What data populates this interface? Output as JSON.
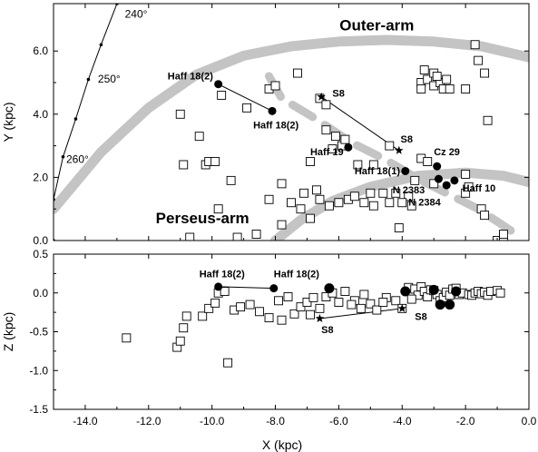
{
  "chart_data": [
    {
      "type": "scatter",
      "panel": "top",
      "xlabel": "",
      "ylabel": "Y (kpc)",
      "xlim": [
        -15.0,
        0.0
      ],
      "ylim": [
        0.0,
        7.5
      ],
      "xticks": [],
      "xticklabels": [],
      "yticks": [
        0.0,
        2.0,
        4.0,
        6.0
      ],
      "yticklabels": [
        "0.0",
        "2.0",
        "4.0",
        "6.0"
      ],
      "grid": false,
      "arm_labels": [
        {
          "text": "Outer-arm",
          "x": -4.8,
          "y": 6.65
        },
        {
          "text": "Perseus-arm",
          "x": -10.3,
          "y": 0.55
        }
      ],
      "longitude_line": {
        "points": [
          [
            -15.0,
            0.0
          ],
          [
            -15.0,
            1.3
          ],
          [
            -14.7,
            2.65
          ],
          [
            -14.3,
            3.85
          ],
          [
            -13.9,
            5.1
          ],
          [
            -13.5,
            6.2
          ],
          [
            -13.0,
            7.5
          ]
        ],
        "labels": [
          {
            "text": "240°",
            "x": -12.75,
            "y": 7.05
          },
          {
            "text": "250°",
            "x": -13.6,
            "y": 5.0
          },
          {
            "text": "260°",
            "x": -14.6,
            "y": 2.45
          }
        ]
      },
      "arms": [
        {
          "name": "outer-arm",
          "style": "solid",
          "points": [
            [
              -15.0,
              1.0
            ],
            [
              -13.5,
              2.8
            ],
            [
              -12.0,
              4.2
            ],
            [
              -10.5,
              5.25
            ],
            [
              -9.0,
              5.85
            ],
            [
              -7.5,
              6.15
            ],
            [
              -6.0,
              6.3
            ],
            [
              -4.5,
              6.35
            ],
            [
              -3.0,
              6.3
            ],
            [
              -1.5,
              6.15
            ],
            [
              0.0,
              5.8
            ]
          ]
        },
        {
          "name": "perseus-arm",
          "style": "solid",
          "points": [
            [
              -8.0,
              0.0
            ],
            [
              -7.2,
              0.65
            ],
            [
              -6.2,
              1.25
            ],
            [
              -5.0,
              1.7
            ],
            [
              -3.5,
              2.05
            ],
            [
              -2.0,
              2.15
            ],
            [
              -0.8,
              2.05
            ],
            [
              0.0,
              1.85
            ]
          ]
        },
        {
          "name": "dashed-arm",
          "style": "dashed",
          "points": [
            [
              -8.2,
              5.2
            ],
            [
              -7.8,
              4.5
            ],
            [
              -6.8,
              3.9
            ],
            [
              -5.6,
              3.1
            ],
            [
              -4.6,
              2.6
            ],
            [
              -3.4,
              1.9
            ],
            [
              -1.6,
              1.0
            ],
            [
              -0.4,
              0.2
            ]
          ]
        }
      ],
      "open_squares": [
        [
          -11.0,
          4.0
        ],
        [
          -10.9,
          2.4
        ],
        [
          -10.2,
          2.4
        ],
        [
          -10.1,
          2.5
        ],
        [
          -9.9,
          2.5
        ],
        [
          -9.7,
          4.6
        ],
        [
          -10.4,
          3.3
        ],
        [
          -9.8,
          1.0
        ],
        [
          -10.7,
          0.1
        ],
        [
          -9.4,
          1.9
        ],
        [
          -8.9,
          4.2
        ],
        [
          -8.2,
          4.8
        ],
        [
          -8.0,
          4.9
        ],
        [
          -7.3,
          5.3
        ],
        [
          -8.2,
          1.3
        ],
        [
          -7.8,
          0.5
        ],
        [
          -7.5,
          1.2
        ],
        [
          -7.2,
          1.0
        ],
        [
          -7.1,
          1.5
        ],
        [
          -6.9,
          0.7
        ],
        [
          -6.6,
          1.3
        ],
        [
          -6.3,
          1.1
        ],
        [
          -6.4,
          3.5
        ],
        [
          -6.1,
          3.3
        ],
        [
          -5.9,
          3.0
        ],
        [
          -6.2,
          2.9
        ],
        [
          -5.8,
          3.2
        ],
        [
          -6.6,
          4.5
        ],
        [
          -6.4,
          4.3
        ],
        [
          -6.9,
          2.5
        ],
        [
          -6.7,
          1.6
        ],
        [
          -6.0,
          1.2
        ],
        [
          -5.7,
          1.3
        ],
        [
          -5.5,
          1.4
        ],
        [
          -5.2,
          1.2
        ],
        [
          -5.0,
          1.5
        ],
        [
          -4.9,
          1.1
        ],
        [
          -4.6,
          1.5
        ],
        [
          -5.4,
          2.4
        ],
        [
          -4.9,
          2.4
        ],
        [
          -4.2,
          1.5
        ],
        [
          -4.1,
          0.4
        ],
        [
          -3.7,
          1.1
        ],
        [
          -3.8,
          1.4
        ],
        [
          -3.4,
          2.6
        ],
        [
          -3.2,
          2.5
        ],
        [
          -3.6,
          1.9
        ],
        [
          -3.4,
          5.0
        ],
        [
          -3.2,
          5.1
        ],
        [
          -3.0,
          5.3
        ],
        [
          -3.3,
          5.4
        ],
        [
          -3.0,
          4.9
        ],
        [
          -2.8,
          5.0
        ],
        [
          -2.7,
          4.8
        ],
        [
          -2.9,
          5.2
        ],
        [
          -2.6,
          5.1
        ],
        [
          -2.5,
          4.8
        ],
        [
          -3.4,
          4.8
        ],
        [
          -2.0,
          4.8
        ],
        [
          -1.7,
          6.2
        ],
        [
          -1.6,
          5.7
        ],
        [
          -1.4,
          5.3
        ],
        [
          -1.3,
          3.8
        ],
        [
          -2.0,
          2.1
        ],
        [
          -2.0,
          1.5
        ],
        [
          -1.9,
          1.7
        ],
        [
          -1.5,
          1.0
        ],
        [
          -1.4,
          0.8
        ],
        [
          -1.0,
          0.0
        ],
        [
          -0.8,
          0.1
        ],
        [
          -0.8,
          0.2
        ],
        [
          -7.8,
          1.8
        ],
        [
          -4.4,
          1.2
        ],
        [
          -4.0,
          1.2
        ],
        [
          -9.2,
          0.1
        ],
        [
          -8.6,
          0.2
        ],
        [
          -4.4,
          3.0
        ],
        [
          -3.0,
          1.8
        ]
      ],
      "filled_circles": [
        {
          "label": "Haff 18(2)",
          "x": -9.8,
          "y": 4.95
        },
        {
          "label": "Haff 18(2)",
          "x": -8.1,
          "y": 4.1
        },
        {
          "label": "Haff 19",
          "x": -5.7,
          "y": 2.95
        },
        {
          "label": "Haff 18(1)",
          "x": -3.9,
          "y": 2.2
        },
        {
          "label": "Cz 29",
          "x": -2.9,
          "y": 2.35
        },
        {
          "label": "N 2383",
          "x": -2.85,
          "y": 1.95
        },
        {
          "label": "N 2384",
          "x": -2.6,
          "y": 1.75
        },
        {
          "label": "Haff 10",
          "x": -2.35,
          "y": 1.9
        }
      ],
      "stars": [
        {
          "label": "S8",
          "x": -6.55,
          "y": 4.55
        },
        {
          "label": "S8",
          "x": -4.1,
          "y": 2.85
        }
      ],
      "labels": [
        {
          "text": "Haff 18(2)",
          "x": -11.4,
          "y": 5.1
        },
        {
          "text": "Haff 18(2)",
          "x": -8.7,
          "y": 3.55
        },
        {
          "text": "S8",
          "x": -6.2,
          "y": 4.55
        },
        {
          "text": "S8",
          "x": -4.05,
          "y": 3.1
        },
        {
          "text": "Haff 19",
          "x": -6.9,
          "y": 2.7
        },
        {
          "text": "Cz 29",
          "x": -3.0,
          "y": 2.7
        },
        {
          "text": "Haff 18(1)",
          "x": -5.5,
          "y": 2.1
        },
        {
          "text": "N 2383",
          "x": -4.3,
          "y": 1.5
        },
        {
          "text": "N 2384",
          "x": -3.8,
          "y": 1.1
        },
        {
          "text": "Haff 10",
          "x": -2.1,
          "y": 1.55
        }
      ]
    },
    {
      "type": "scatter",
      "panel": "bottom",
      "xlabel": "X (kpc)",
      "ylabel": "Z (kpc)",
      "xlim": [
        -15.0,
        0.0
      ],
      "ylim": [
        -1.5,
        0.5
      ],
      "xticks": [
        -14.0,
        -12.0,
        -10.0,
        -8.0,
        -6.0,
        -4.0,
        -2.0,
        0.0
      ],
      "xticklabels": [
        "-14.0",
        "-12.0",
        "-10.0",
        "-8.0",
        "-6.0",
        "-4.0",
        "-2.0",
        "0.0"
      ],
      "yticks": [
        -1.5,
        -1.0,
        -0.5,
        0.0,
        0.5
      ],
      "yticklabels": [
        "-1.5",
        "-1.0",
        "-0.5",
        "0.0",
        "0.5"
      ],
      "grid": false,
      "open_squares": [
        [
          -12.7,
          -0.58
        ],
        [
          -11.1,
          -0.7
        ],
        [
          -11.0,
          -0.62
        ],
        [
          -10.9,
          -0.45
        ],
        [
          -10.8,
          -0.3
        ],
        [
          -10.3,
          -0.3
        ],
        [
          -10.1,
          -0.2
        ],
        [
          -9.9,
          -0.13
        ],
        [
          -9.5,
          -0.9
        ],
        [
          -9.8,
          0.0
        ],
        [
          -9.6,
          0.02
        ],
        [
          -9.3,
          -0.22
        ],
        [
          -9.1,
          -0.18
        ],
        [
          -8.8,
          -0.15
        ],
        [
          -8.5,
          -0.24
        ],
        [
          -8.2,
          -0.32
        ],
        [
          -7.9,
          -0.1
        ],
        [
          -7.6,
          -0.05
        ],
        [
          -7.4,
          -0.27
        ],
        [
          -7.2,
          -0.18
        ],
        [
          -7.0,
          -0.12
        ],
        [
          -6.8,
          -0.06
        ],
        [
          -6.6,
          -0.2
        ],
        [
          -6.4,
          -0.05
        ],
        [
          -6.2,
          0.0
        ],
        [
          -6.0,
          -0.12
        ],
        [
          -5.8,
          0.02
        ],
        [
          -5.5,
          -0.1
        ],
        [
          -5.2,
          -0.02
        ],
        [
          -5.0,
          -0.14
        ],
        [
          -4.8,
          -0.22
        ],
        [
          -4.5,
          -0.06
        ],
        [
          -4.2,
          -0.1
        ],
        [
          -4.0,
          -0.2
        ],
        [
          -3.8,
          0.07
        ],
        [
          -3.6,
          0.05
        ],
        [
          -3.5,
          -0.03
        ],
        [
          -3.4,
          0.08
        ],
        [
          -3.3,
          0.02
        ],
        [
          -3.2,
          -0.05
        ],
        [
          -3.1,
          0.04
        ],
        [
          -3.0,
          0.03
        ],
        [
          -2.9,
          -0.02
        ],
        [
          -2.8,
          -0.1
        ],
        [
          -2.7,
          -0.06
        ],
        [
          -2.6,
          0.01
        ],
        [
          -2.5,
          -0.03
        ],
        [
          -2.4,
          0.05
        ],
        [
          -2.2,
          -0.02
        ],
        [
          -2.1,
          0.0
        ],
        [
          -1.9,
          -0.02
        ],
        [
          -1.8,
          -0.03
        ],
        [
          -1.7,
          0.0
        ],
        [
          -1.6,
          0.02
        ],
        [
          -1.5,
          -0.01
        ],
        [
          -1.4,
          0.01
        ],
        [
          -1.3,
          -0.03
        ],
        [
          -1.2,
          0.02
        ],
        [
          -1.0,
          0.03
        ],
        [
          -0.9,
          0.0
        ],
        [
          -5.6,
          -0.15
        ],
        [
          -5.3,
          -0.2
        ],
        [
          -4.6,
          -0.12
        ],
        [
          -7.8,
          -0.35
        ],
        [
          -6.9,
          -0.28
        ],
        [
          -3.7,
          -0.08
        ],
        [
          -2.3,
          0.06
        ]
      ],
      "filled_circles": [
        {
          "label": "Haff 18(2)",
          "x": -9.8,
          "y": 0.08
        },
        {
          "label": "Haff 18(2)",
          "x": -8.05,
          "y": 0.06
        },
        {
          "label": "",
          "x": -6.3,
          "y": 0.06
        },
        {
          "label": "",
          "x": -3.9,
          "y": 0.02
        },
        {
          "label": "",
          "x": -3.0,
          "y": 0.04
        },
        {
          "label": "",
          "x": -2.8,
          "y": -0.15
        },
        {
          "label": "",
          "x": -2.5,
          "y": -0.15
        },
        {
          "label": "",
          "x": -2.3,
          "y": 0.02
        }
      ],
      "stars": [
        {
          "label": "S8",
          "x": -6.6,
          "y": -0.33
        },
        {
          "label": "S8",
          "x": -4.0,
          "y": -0.2
        }
      ],
      "labels": [
        {
          "text": "Haff 18(2)",
          "x": -10.4,
          "y": 0.2
        },
        {
          "text": "Haff 18(2)",
          "x": -8.05,
          "y": 0.2
        },
        {
          "text": "S8",
          "x": -6.55,
          "y": -0.52
        },
        {
          "text": "S8",
          "x": -3.6,
          "y": -0.35
        }
      ]
    }
  ]
}
